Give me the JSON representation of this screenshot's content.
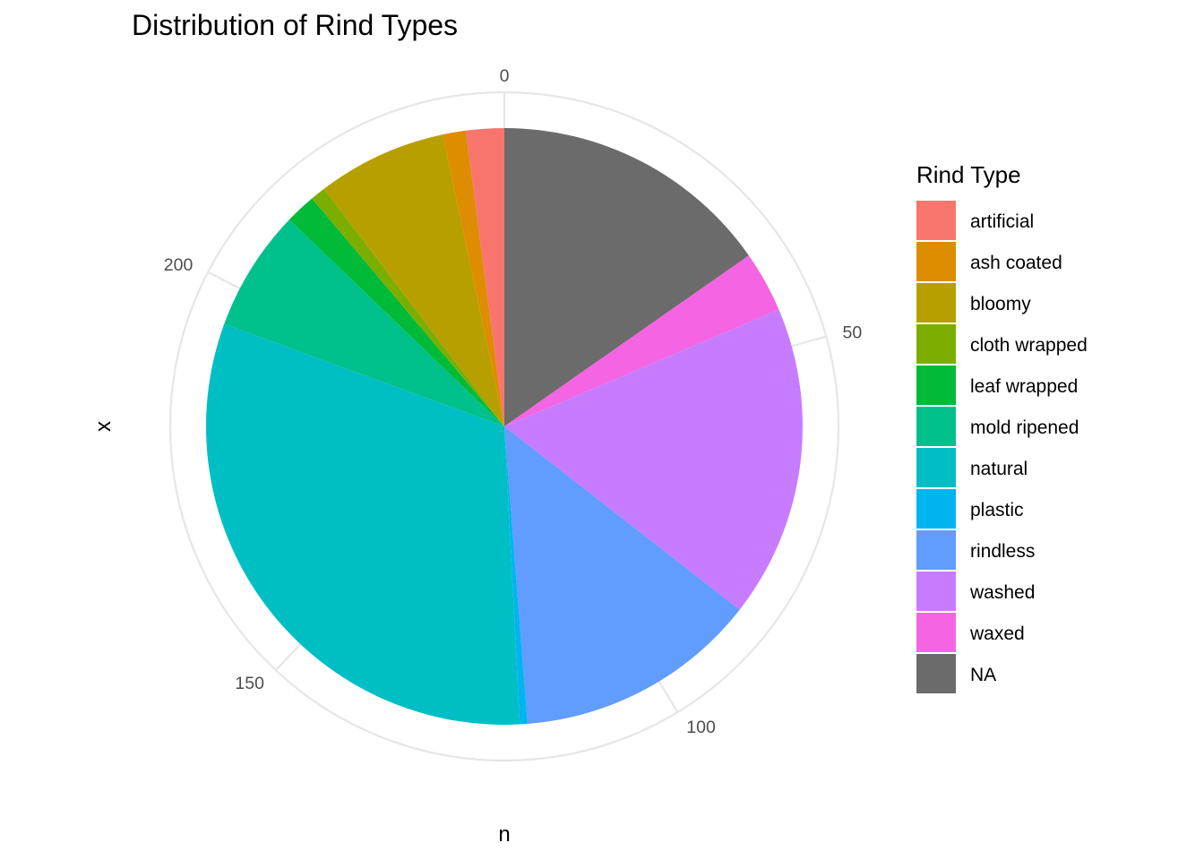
{
  "chart_data": {
    "type": "pie",
    "title": "Distribution of Rind Types",
    "xlabel": "n",
    "ylabel": "x",
    "legend_title": "Rind Type",
    "legend_position": "right",
    "grid": true,
    "theta_ticks": [
      0,
      50,
      100,
      150,
      200
    ],
    "categories": [
      "artificial",
      "ash coated",
      "bloomy",
      "cloth wrapped",
      "leaf wrapped",
      "mold ripened",
      "natural",
      "plastic",
      "rindless",
      "washed",
      "waxed",
      "NA"
    ],
    "values": [
      5,
      3,
      17,
      2,
      4,
      16,
      76,
      1,
      32,
      41,
      8,
      37
    ],
    "colors": [
      "#F8766D",
      "#DE8C00",
      "#B79F00",
      "#7CAE00",
      "#00BA38",
      "#00C08B",
      "#00BFC4",
      "#00B4F0",
      "#619CFF",
      "#C77CFF",
      "#F564E3",
      "#6B6B6B"
    ],
    "slice_order": [
      "NA",
      "waxed",
      "washed",
      "rindless",
      "plastic",
      "natural",
      "mold ripened",
      "leaf wrapped",
      "cloth wrapped",
      "bloomy",
      "ash coated",
      "artificial"
    ]
  }
}
